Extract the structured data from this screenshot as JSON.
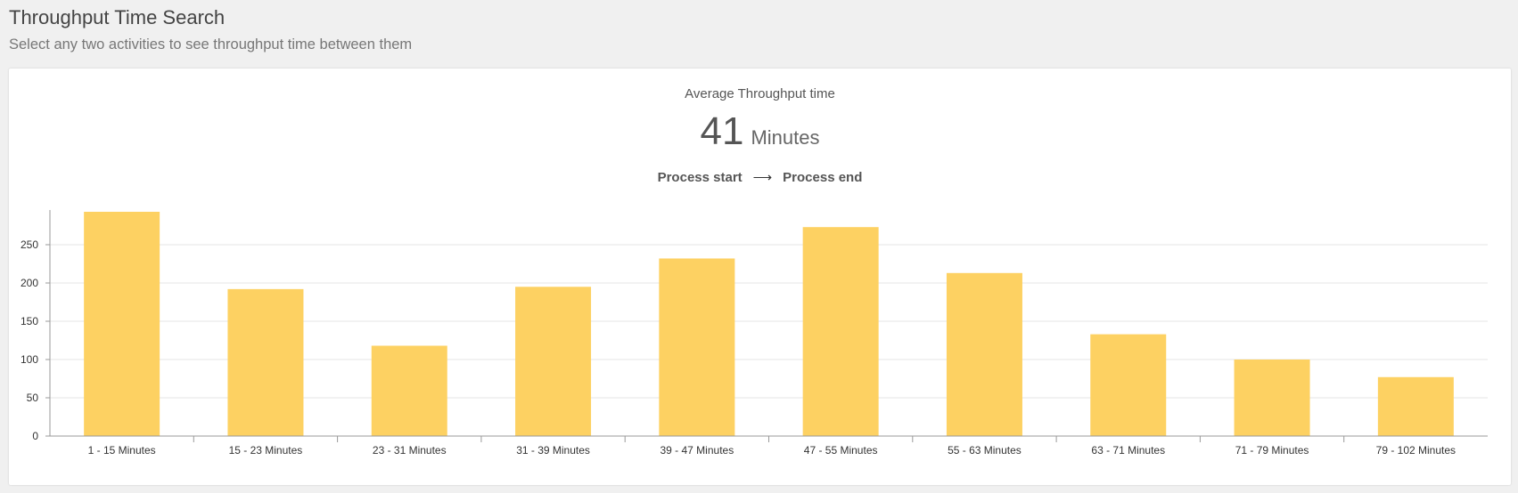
{
  "header": {
    "title": "Throughput Time Search",
    "subtitle": "Select any two activities to see throughput time between them"
  },
  "metric": {
    "label": "Average Throughput time",
    "value": "41",
    "unit": "Minutes",
    "from_activity": "Process start",
    "arrow": "⟶",
    "to_activity": "Process end"
  },
  "colors": {
    "bar": "#fdd162",
    "grid": "#e6e6e6",
    "axis": "#999999"
  },
  "chart_data": {
    "type": "bar",
    "categories": [
      "1 - 15 Minutes",
      "15 - 23 Minutes",
      "23 - 31 Minutes",
      "31 - 39 Minutes",
      "39 - 47 Minutes",
      "47 - 55 Minutes",
      "55 - 63 Minutes",
      "63 - 71 Minutes",
      "71 - 79 Minutes",
      "79 - 102 Minutes"
    ],
    "values": [
      293,
      192,
      118,
      195,
      232,
      273,
      213,
      133,
      100,
      77
    ],
    "yticks": [
      0,
      50,
      100,
      150,
      200,
      250
    ],
    "ylim": [
      0,
      293
    ],
    "grid": true,
    "title": "",
    "xlabel": "",
    "ylabel": ""
  }
}
